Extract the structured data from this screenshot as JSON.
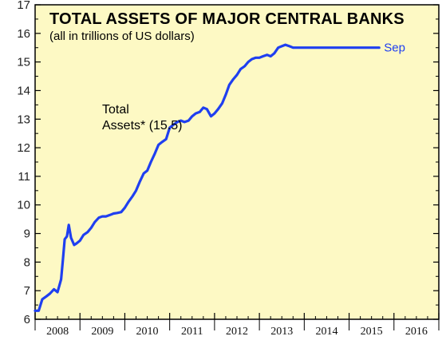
{
  "chart_data": {
    "type": "line",
    "title": "TOTAL ASSETS OF MAJOR CENTRAL BANKS",
    "subtitle": "(all in trillions of US dollars)",
    "annotation_lines": [
      "Total",
      "Assets* (15.5)"
    ],
    "end_label": "Sep",
    "ylim": [
      6,
      17
    ],
    "y_ticks": [
      6,
      7,
      8,
      9,
      10,
      11,
      12,
      13,
      14,
      15,
      16,
      17
    ],
    "x_range": [
      2008,
      2017
    ],
    "x_tick_labels": [
      "2008",
      "2009",
      "2010",
      "2011",
      "2012",
      "2013",
      "2014",
      "2015",
      "2016"
    ],
    "series_color": "#1f3ff0",
    "background_color": "#fdf9c4",
    "series": [
      {
        "x": [
          2008.0,
          2008.08,
          2008.16,
          2008.25,
          2008.33,
          2008.42,
          2008.5,
          2008.58,
          2008.62,
          2008.66,
          2008.71,
          2008.75,
          2008.8,
          2008.87,
          2008.92,
          2009.0,
          2009.08,
          2009.17,
          2009.25,
          2009.33,
          2009.42,
          2009.5,
          2009.58,
          2009.67,
          2009.75,
          2009.83,
          2009.92,
          2010.0,
          2010.08,
          2010.17,
          2010.25,
          2010.33,
          2010.42,
          2010.5,
          2010.58,
          2010.67,
          2010.75,
          2010.83,
          2010.92,
          2011.0,
          2011.08,
          2011.17,
          2011.25,
          2011.33,
          2011.42,
          2011.5,
          2011.58,
          2011.67,
          2011.75,
          2011.83,
          2011.92,
          2012.0,
          2012.08,
          2012.17,
          2012.25,
          2012.33,
          2012.42,
          2012.5,
          2012.58,
          2012.67,
          2012.75,
          2012.83,
          2012.92,
          2013.0,
          2013.08,
          2013.17,
          2013.25,
          2013.33,
          2013.42,
          2013.5,
          2013.58,
          2013.67,
          2013.75,
          2013.83,
          2013.92,
          2014.0,
          2014.08,
          2014.17,
          2014.25,
          2014.33,
          2014.42,
          2014.5,
          2014.58,
          2014.67,
          2014.75,
          2014.83,
          2014.92,
          2015.0,
          2015.08,
          2015.17,
          2015.25,
          2015.33,
          2015.42,
          2015.5,
          2015.58,
          2015.67
        ],
        "y": [
          6.3,
          6.3,
          6.7,
          6.8,
          6.9,
          7.05,
          6.95,
          7.4,
          8.1,
          8.8,
          8.9,
          9.3,
          8.85,
          8.6,
          8.65,
          8.75,
          8.95,
          9.05,
          9.2,
          9.4,
          9.55,
          9.6,
          9.6,
          9.65,
          9.7,
          9.72,
          9.75,
          9.9,
          10.1,
          10.3,
          10.5,
          10.8,
          11.1,
          11.2,
          11.5,
          11.8,
          12.1,
          12.2,
          12.3,
          12.7,
          12.8,
          12.9,
          12.95,
          12.9,
          12.95,
          13.1,
          13.2,
          13.25,
          13.4,
          13.35,
          13.1,
          13.2,
          13.35,
          13.55,
          13.85,
          14.2,
          14.4,
          14.55,
          14.75,
          14.85,
          15.0,
          15.1,
          15.15,
          15.15,
          15.2,
          15.25,
          15.2,
          15.3,
          15.5,
          15.55,
          15.6,
          15.55,
          15.5,
          15.5,
          15.5,
          15.5,
          15.5,
          15.5,
          15.5,
          15.5,
          15.5,
          15.5,
          15.5,
          15.5,
          15.5,
          15.5,
          15.5,
          15.5,
          15.5,
          15.5,
          15.5,
          15.5,
          15.5,
          15.5,
          15.5,
          15.5
        ]
      }
    ]
  }
}
